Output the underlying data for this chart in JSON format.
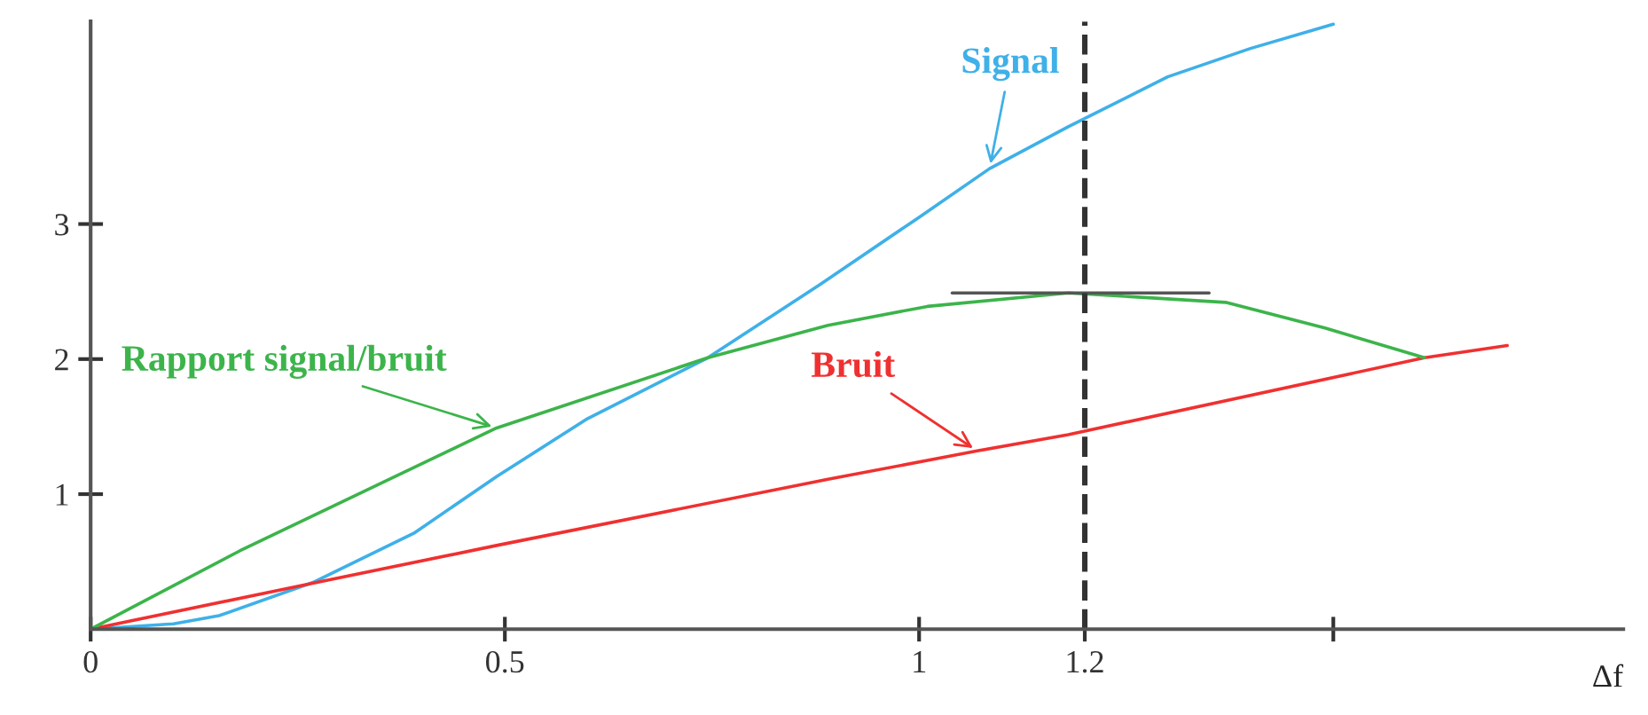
{
  "chart_data": {
    "type": "line",
    "xlabel": "Δf",
    "xlim": [
      0,
      1.85
    ],
    "ylim": [
      0,
      4.5
    ],
    "xticks": [
      0,
      0.5,
      1,
      1.2,
      {
        "value": 1.5,
        "label": null
      }
    ],
    "yticks": [
      1,
      2,
      3
    ],
    "grid": false,
    "legend": false,
    "marker": "none",
    "line_style": "solid",
    "series": [
      {
        "name": "Signal",
        "color": "#3fb0e8",
        "x": [
          0,
          0.1,
          0.155,
          0.27,
          0.39,
          0.49,
          0.6,
          0.745,
          0.88,
          1.0,
          1.085,
          1.18,
          1.3,
          1.4,
          1.5
        ],
        "values": [
          0,
          0.04,
          0.1,
          0.35,
          0.71,
          1.13,
          1.56,
          2.01,
          2.55,
          3.05,
          3.41,
          3.72,
          4.09,
          4.3,
          4.48
        ]
      },
      {
        "name": "Bruit",
        "color": "#f03030",
        "x": [
          0,
          0.26,
          0.49,
          0.89,
          1.07,
          1.18,
          1.61,
          1.71
        ],
        "values": [
          0,
          0.33,
          0.62,
          1.11,
          1.32,
          1.44,
          2.01,
          2.1
        ]
      },
      {
        "name": "Rapport signal/bruit",
        "color": "#3cb44b",
        "x": [
          0,
          0.18,
          0.49,
          0.745,
          0.89,
          1.01,
          1.18,
          1.37,
          1.49,
          1.61
        ],
        "values": [
          0,
          0.58,
          1.49,
          2.01,
          2.25,
          2.39,
          2.49,
          2.42,
          2.23,
          2.01
        ]
      },
      {
        "color": "#555555",
        "x": [
          1.04,
          1.35
        ],
        "values": [
          2.49,
          2.49
        ]
      }
    ],
    "ref_lines": [
      {
        "axis": "x",
        "value": 1.2,
        "color": "#333333",
        "line_style": "dashed"
      }
    ]
  }
}
